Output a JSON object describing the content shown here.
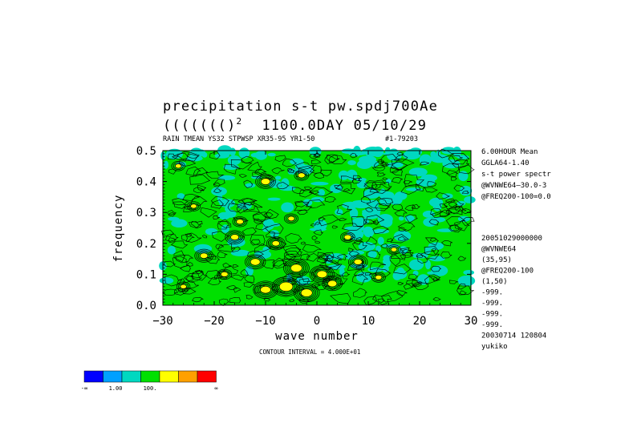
{
  "header": {
    "title_line1": "precipitation s-t pw.spdj700Ae",
    "title_line2_prefix": "((((((()",
    "title_line2_sup": "2",
    "title_line2_rest": "1100.0DAY 05/10/29",
    "subtitle_left": "RAIN TMEAN YS32 STPWSP XR35-95 YR1-50",
    "subtitle_right": "#1-79203"
  },
  "side_info": {
    "top": [
      "6.00HOUR Mean",
      "GGLA64-1.40",
      "s-t power spectr",
      "@WVNWE64—30.0-3",
      "@FREQ200-100=0.0"
    ],
    "bottom": [
      "20051029000000",
      "@WVNWE64",
      "(35,95)",
      "@FREQ200-100",
      "(1,50)",
      "-999.",
      "-999.",
      "-999.",
      "-999.",
      "20030714 120804",
      "yukiko"
    ]
  },
  "contour_interval": "CONTOUR INTERVAL = 4.000E+01",
  "colorbar": {
    "colors": [
      "#0000ff",
      "#00a0ff",
      "#00d8c0",
      "#00e000",
      "#ffff00",
      "#ffa000",
      "#ff0000"
    ],
    "labels": [
      "-∞",
      "1.00",
      "100.",
      "∞"
    ]
  },
  "chart_data": {
    "type": "heatmap",
    "title": "precipitation s-t pw.spdj700Ae",
    "xlabel": "wave number",
    "ylabel": "frequency",
    "xlim": [
      -30,
      30
    ],
    "ylim": [
      0.0,
      0.5
    ],
    "xticks": [
      -30,
      -20,
      -10,
      0,
      10,
      20,
      30
    ],
    "xtick_labels": [
      "−30",
      "−20",
      "−10",
      "0",
      "10",
      "20",
      "30"
    ],
    "yticks": [
      0.0,
      0.1,
      0.2,
      0.3,
      0.4,
      0.5
    ],
    "ytick_labels": [
      "0.0",
      "0.1",
      "0.2",
      "0.3",
      "0.4",
      "0.5"
    ],
    "levels": [
      1.0,
      100.0
    ],
    "dominant_fill": "#00e000",
    "hotspots": [
      {
        "x": -10,
        "y": 0.4,
        "value": 180
      },
      {
        "x": -3,
        "y": 0.42,
        "value": 140
      },
      {
        "x": -24,
        "y": 0.32,
        "value": 120
      },
      {
        "x": -15,
        "y": 0.27,
        "value": 140
      },
      {
        "x": -5,
        "y": 0.28,
        "value": 130
      },
      {
        "x": -16,
        "y": 0.22,
        "value": 160
      },
      {
        "x": -8,
        "y": 0.2,
        "value": 150
      },
      {
        "x": 6,
        "y": 0.22,
        "value": 140
      },
      {
        "x": -22,
        "y": 0.16,
        "value": 150
      },
      {
        "x": -12,
        "y": 0.14,
        "value": 190
      },
      {
        "x": -4,
        "y": 0.12,
        "value": 220
      },
      {
        "x": 1,
        "y": 0.1,
        "value": 200
      },
      {
        "x": 8,
        "y": 0.14,
        "value": 160
      },
      {
        "x": -18,
        "y": 0.1,
        "value": 140
      },
      {
        "x": -6,
        "y": 0.06,
        "value": 260
      },
      {
        "x": -2,
        "y": 0.04,
        "value": 220
      },
      {
        "x": 3,
        "y": 0.07,
        "value": 180
      },
      {
        "x": -10,
        "y": 0.05,
        "value": 200
      },
      {
        "x": 12,
        "y": 0.09,
        "value": 130
      },
      {
        "x": -26,
        "y": 0.06,
        "value": 120
      },
      {
        "x": 15,
        "y": 0.18,
        "value": 120
      },
      {
        "x": -27,
        "y": 0.45,
        "value": 120
      }
    ]
  }
}
